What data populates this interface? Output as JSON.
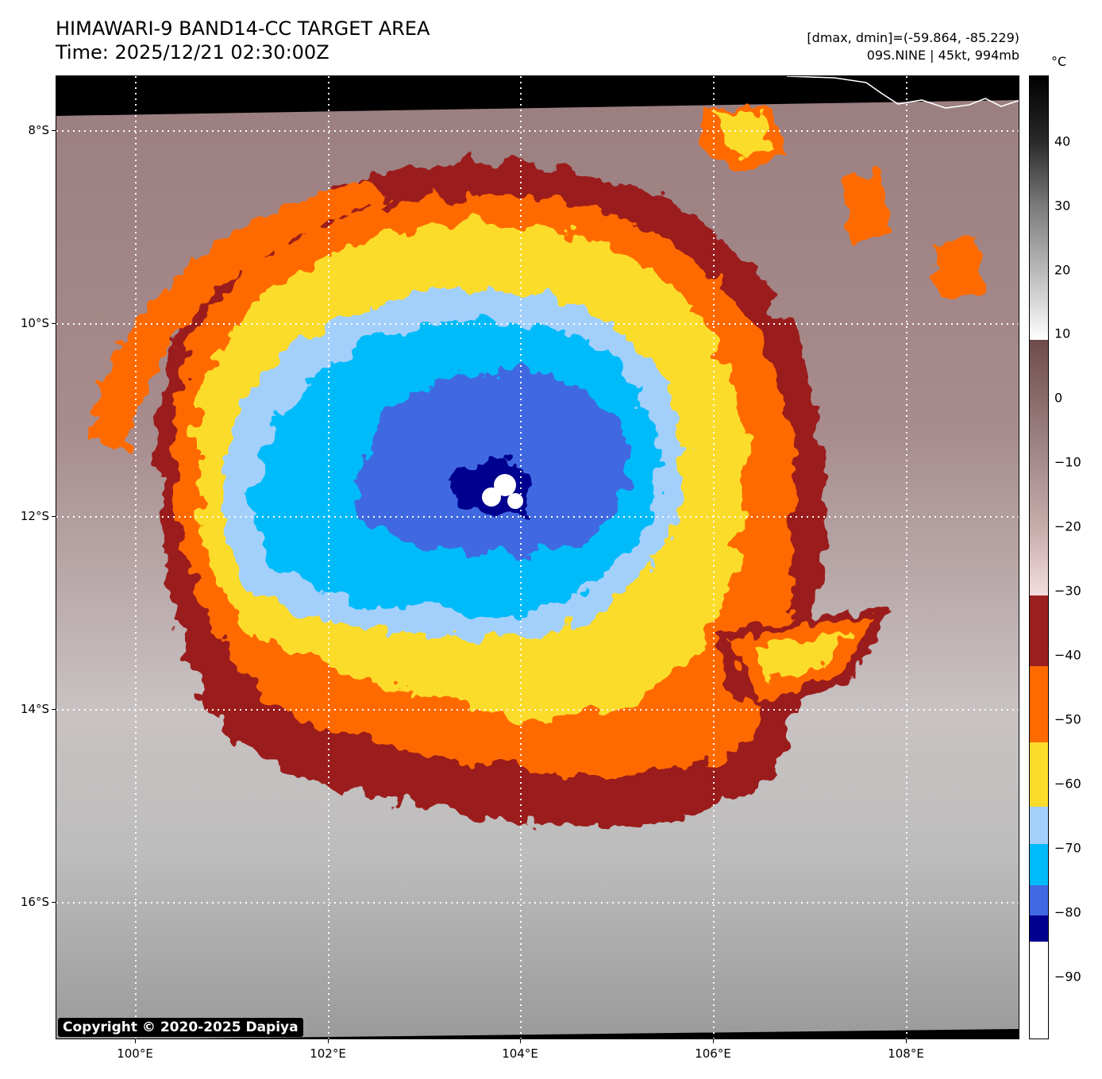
{
  "header": {
    "title": "HIMAWARI-9 BAND14-CC TARGET AREA",
    "time": "Time: 2025/12/21 02:30:00Z",
    "dminmax": "[dmax, dmin]=(-59.864, -85.229)",
    "storm": "09S.NINE | 45kt, 994mb"
  },
  "map": {
    "lat_labels": [
      "8°S",
      "10°S",
      "12°S",
      "14°S",
      "16°S"
    ],
    "lon_labels": [
      "100°E",
      "102°E",
      "104°E",
      "106°E",
      "108°E"
    ],
    "copyright": "Copyright © 2020-2025 Dapiya"
  },
  "colorbar": {
    "unit": "°C",
    "labels": [
      "40",
      "30",
      "20",
      "10",
      "0",
      "−10",
      "−20",
      "−30",
      "−40",
      "−50",
      "−60",
      "−70",
      "−80",
      "−90"
    ]
  },
  "colors": {
    "maroon": "#9b1f1f",
    "orange": "#ff6a00",
    "yellow": "#fcdc2a",
    "light_blue": "#a3cffb",
    "cyan_blue": "#00bbf9",
    "royal_blue": "#4169e1",
    "navy": "#00008f"
  }
}
